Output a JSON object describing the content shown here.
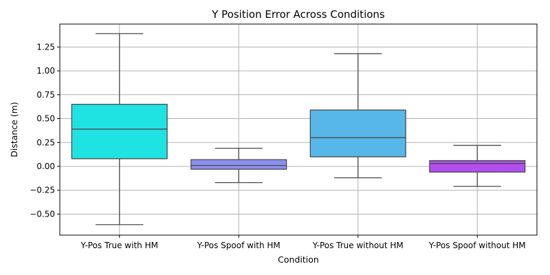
{
  "chart_data": {
    "type": "box",
    "title": "Y Position Error Across Conditions",
    "xlabel": "Condition",
    "ylabel": "Distance (m)",
    "ylim": [
      -0.72,
      1.49
    ],
    "yticks": [
      -0.5,
      -0.25,
      0.0,
      0.25,
      0.5,
      0.75,
      1.0,
      1.25
    ],
    "ytick_labels": [
      "−0.50",
      "−0.25",
      "0.00",
      "0.25",
      "0.50",
      "0.75",
      "1.00",
      "1.25"
    ],
    "grid": true,
    "categories": [
      "Y-Pos True with HM",
      "Y-Pos Spoof with HM",
      "Y-Pos True without HM",
      "Y-Pos Spoof without HM"
    ],
    "boxes": [
      {
        "min": -0.61,
        "q1": 0.08,
        "median": 0.39,
        "q3": 0.65,
        "max": 1.39
      },
      {
        "min": -0.17,
        "q1": -0.03,
        "median": 0.01,
        "q3": 0.07,
        "max": 0.19
      },
      {
        "min": -0.12,
        "q1": 0.1,
        "median": 0.3,
        "q3": 0.59,
        "max": 1.18
      },
      {
        "min": -0.21,
        "q1": -0.06,
        "median": 0.03,
        "q3": 0.06,
        "max": 0.22
      }
    ],
    "colors": [
      "#1fe2e2",
      "#8b8ff0",
      "#57b7e9",
      "#b24ff1"
    ],
    "line_color": "#4a4a4a",
    "grid_color": "#b0b0b0"
  }
}
